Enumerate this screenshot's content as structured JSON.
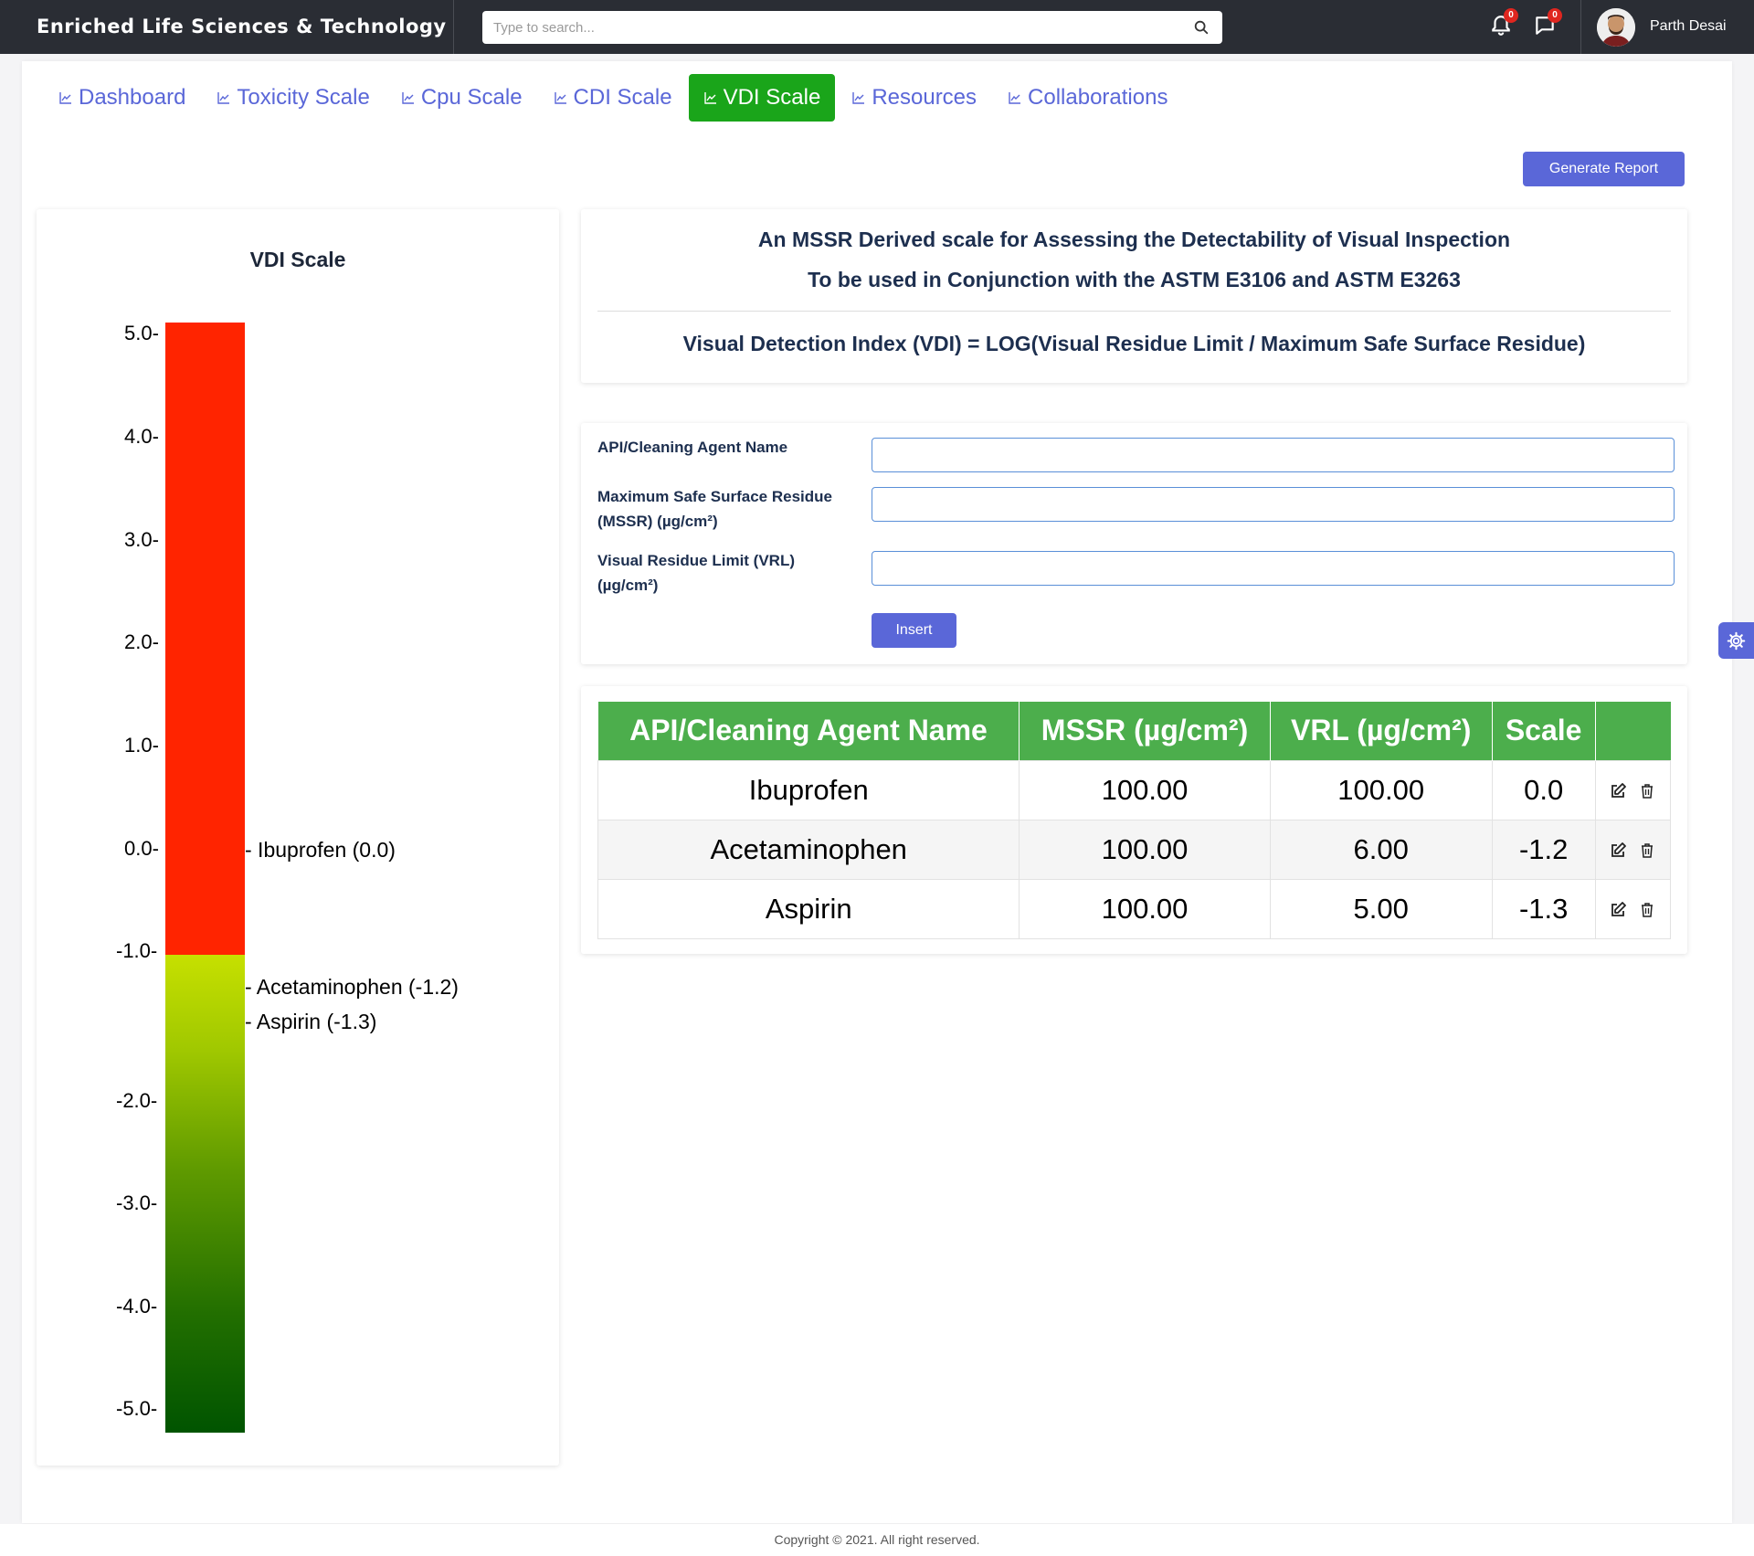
{
  "brand": "Enriched Life Sciences & Technology",
  "search": {
    "placeholder": "Type to search..."
  },
  "notifications": {
    "bell_count": "0",
    "chat_count": "0"
  },
  "user": {
    "name": "Parth Desai"
  },
  "tabs": [
    {
      "label": "Dashboard"
    },
    {
      "label": "Toxicity Scale"
    },
    {
      "label": "Cpu Scale"
    },
    {
      "label": "CDI Scale"
    },
    {
      "label": "VDI Scale",
      "active": true
    },
    {
      "label": "Resources"
    },
    {
      "label": "Collaborations"
    }
  ],
  "generate_report": "Generate Report",
  "scale": {
    "title": "VDI Scale",
    "ticks": [
      "5.0-",
      "4.0-",
      "3.0-",
      "2.0-",
      "1.0-",
      "0.0-",
      "-1.0-",
      "-2.0-",
      "-3.0-",
      "-4.0-",
      "-5.0-"
    ],
    "markers": [
      {
        "label": "- Ibuprofen (0.0)",
        "value": 0.0
      },
      {
        "label": "- Acetaminophen (-1.2)",
        "value": -1.2
      },
      {
        "label": "- Aspirin (-1.3)",
        "value": -1.3
      }
    ],
    "colors": {
      "upper": "#ff2400",
      "lower_top": "#c6e000",
      "lower_bottom": "#005400"
    }
  },
  "formula": {
    "line1": "An MSSR Derived scale for Assessing the Detectability of Visual Inspection",
    "line2": "To be used in Conjunction with the ASTM E3106 and ASTM E3263",
    "line3": "Visual Detection Index (VDI) = LOG(Visual Residue Limit / Maximum Safe Surface Residue)"
  },
  "form": {
    "name_label": "API/Cleaning Agent Name",
    "mssr_label": "Maximum Safe Surface Residue (MSSR) (µg/cm²)",
    "vrl_label": "Visual Residue Limit (VRL) (µg/cm²)",
    "name_value": "",
    "mssr_value": "",
    "vrl_value": "",
    "insert": "Insert"
  },
  "table": {
    "headers": [
      "API/Cleaning Agent Name",
      "MSSR (µg/cm²)",
      "VRL (µg/cm²)",
      "Scale",
      ""
    ],
    "rows": [
      [
        "Ibuprofen",
        "100.00",
        "100.00",
        "0.0"
      ],
      [
        "Acetaminophen",
        "100.00",
        "6.00",
        "-1.2"
      ],
      [
        "Aspirin",
        "100.00",
        "5.00",
        "-1.3"
      ]
    ]
  },
  "footer": "Copyright © 2021. All right reserved.",
  "accent": "#5a67d8",
  "active_tab_color": "#1aa51a",
  "table_header_color": "#4cae4c"
}
